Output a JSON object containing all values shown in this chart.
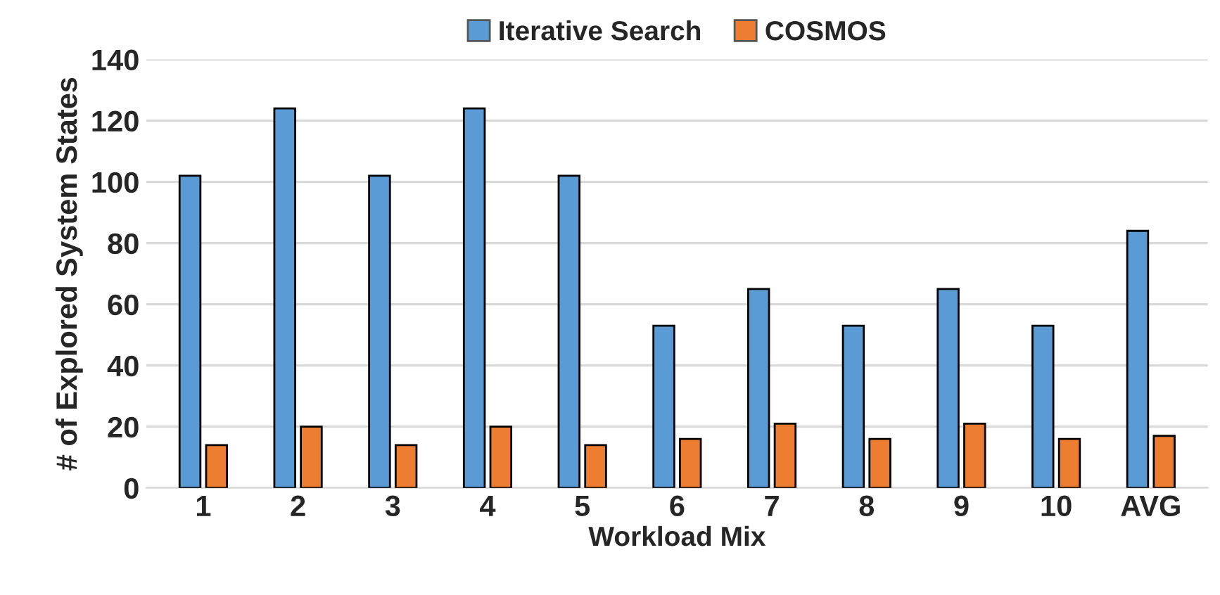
{
  "chart_data": {
    "type": "bar",
    "xlabel": "Workload Mix",
    "ylabel": "# of Explored System States",
    "categories": [
      "1",
      "2",
      "3",
      "4",
      "5",
      "6",
      "7",
      "8",
      "9",
      "10",
      "AVG"
    ],
    "series": [
      {
        "name": "Iterative Search",
        "color": "#5b9bd5",
        "values": [
          102,
          124,
          102,
          124,
          102,
          53,
          65,
          53,
          65,
          53,
          84
        ]
      },
      {
        "name": "COSMOS",
        "color": "#ed7d31",
        "values": [
          14,
          20,
          14,
          20,
          14,
          16,
          21,
          16,
          21,
          16,
          17
        ]
      }
    ],
    "ylim": [
      0,
      140
    ],
    "yticks": [
      0,
      20,
      40,
      60,
      80,
      100,
      120,
      140
    ],
    "grid": "y",
    "legend": "top"
  }
}
